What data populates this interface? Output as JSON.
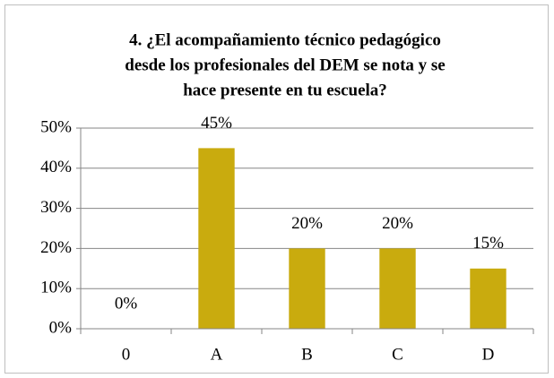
{
  "chart_data": {
    "type": "bar",
    "title": [
      "4. ¿El acompañamiento técnico pedagógico",
      "desde los profesionales del DEM se nota y  se",
      "hace presente en tu escuela?"
    ],
    "categories": [
      "0",
      "A",
      "B",
      "C",
      "D"
    ],
    "values": [
      0,
      45,
      20,
      20,
      15
    ],
    "value_labels": [
      "0%",
      "45%",
      "20%",
      "20%",
      "15%"
    ],
    "color": "#c9ab0e",
    "ylim": [
      0,
      50
    ],
    "yticks": [
      {
        "value": 0,
        "label": "0%"
      },
      {
        "value": 10,
        "label": "10%"
      },
      {
        "value": 20,
        "label": "20%"
      },
      {
        "value": 30,
        "label": "30%"
      },
      {
        "value": 40,
        "label": "40%"
      },
      {
        "value": 50,
        "label": "50%"
      }
    ],
    "grid": true
  }
}
